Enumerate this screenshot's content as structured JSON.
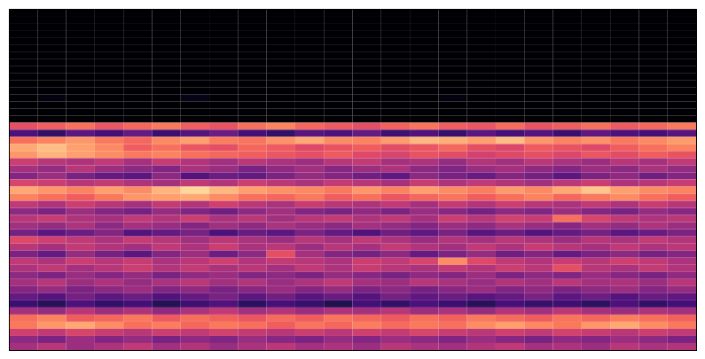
{
  "chart_data": {
    "type": "heatmap",
    "color": "magma",
    "xlim": [
      0,
      24
    ],
    "ylim": [
      0,
      48
    ],
    "zlim": [
      0,
      100
    ],
    "tick_labels": false,
    "cells": [
      [
        0,
        0,
        0,
        0,
        0,
        0,
        0,
        0,
        0,
        0,
        0,
        0,
        0,
        0,
        0,
        0,
        0,
        0,
        0,
        0,
        0,
        0,
        0,
        0
      ],
      [
        0,
        0,
        0,
        0,
        0,
        0,
        0,
        0,
        0,
        0,
        0,
        0,
        0,
        0,
        0,
        0,
        0,
        0,
        0,
        0,
        0,
        0,
        0,
        0
      ],
      [
        0,
        0,
        0,
        0,
        0,
        0,
        0,
        0,
        0,
        0,
        0,
        0,
        0,
        0,
        0,
        0,
        0,
        0,
        0,
        0,
        0,
        0,
        0,
        0
      ],
      [
        0,
        0,
        0,
        0,
        0,
        0,
        0,
        0,
        0,
        0,
        0,
        0,
        0,
        0,
        0,
        0,
        0,
        0,
        0,
        0,
        0,
        0,
        0,
        0
      ],
      [
        0,
        0,
        0,
        0,
        0,
        0,
        0,
        0,
        0,
        0,
        0,
        0,
        0,
        0,
        0,
        0,
        0,
        0,
        0,
        0,
        0,
        0,
        0,
        0
      ],
      [
        0,
        0,
        0,
        0,
        0,
        0,
        0,
        0,
        0,
        0,
        0,
        0,
        0,
        0,
        0,
        0,
        0,
        0,
        0,
        0,
        0,
        0,
        0,
        0
      ],
      [
        0,
        0,
        0,
        0,
        0,
        0,
        0,
        0,
        0,
        0,
        0,
        0,
        0,
        0,
        0,
        0,
        0,
        0,
        0,
        0,
        0,
        0,
        0,
        0
      ],
      [
        0,
        0,
        0,
        0,
        0,
        0,
        0,
        0,
        0,
        0,
        0,
        0,
        0,
        0,
        0,
        0,
        0,
        0,
        0,
        0,
        0,
        0,
        0,
        0
      ],
      [
        0,
        0,
        0,
        0,
        0,
        0,
        0,
        0,
        0,
        0,
        0,
        0,
        0,
        0,
        0,
        0,
        0,
        0,
        0,
        0,
        0,
        0,
        0,
        0
      ],
      [
        0,
        0,
        0,
        0,
        0,
        0,
        0,
        0,
        0,
        0,
        0,
        0,
        0,
        0,
        0,
        0,
        0,
        0,
        0,
        0,
        0,
        0,
        0,
        0
      ],
      [
        0,
        0,
        0,
        0,
        0,
        0,
        0,
        0,
        0,
        0,
        0,
        0,
        0,
        0,
        0,
        0,
        0,
        0,
        0,
        0,
        0,
        0,
        0,
        0
      ],
      [
        0,
        0,
        0,
        0,
        0,
        0,
        0,
        0,
        0,
        0,
        0,
        0,
        0,
        0,
        0,
        0,
        0,
        0,
        0,
        0,
        0,
        0,
        0,
        0
      ],
      [
        0,
        3,
        0,
        0,
        0,
        0,
        4,
        0,
        0,
        0,
        0,
        0,
        0,
        0,
        0,
        3,
        0,
        0,
        0,
        0,
        0,
        0,
        0,
        0
      ],
      [
        0,
        0,
        0,
        0,
        0,
        0,
        0,
        0,
        0,
        0,
        0,
        0,
        0,
        0,
        0,
        0,
        0,
        0,
        0,
        0,
        0,
        0,
        0,
        0
      ],
      [
        0,
        0,
        0,
        0,
        0,
        0,
        0,
        0,
        0,
        0,
        0,
        0,
        0,
        0,
        0,
        0,
        0,
        0,
        0,
        0,
        0,
        0,
        0,
        0
      ],
      [
        0,
        0,
        0,
        0,
        0,
        0,
        0,
        0,
        0,
        0,
        0,
        0,
        0,
        0,
        0,
        0,
        0,
        0,
        0,
        0,
        0,
        0,
        0,
        0
      ],
      [
        62,
        66,
        70,
        64,
        68,
        72,
        66,
        63,
        70,
        74,
        68,
        65,
        62,
        67,
        71,
        66,
        64,
        69,
        63,
        66,
        70,
        65,
        68,
        72
      ],
      [
        24,
        18,
        28,
        22,
        30,
        20,
        26,
        32,
        22,
        18,
        27,
        24,
        30,
        21,
        25,
        19,
        28,
        23,
        26,
        20,
        29,
        24,
        22,
        27
      ],
      [
        70,
        74,
        78,
        72,
        68,
        75,
        80,
        73,
        71,
        77,
        82,
        76,
        74,
        79,
        85,
        83,
        80,
        86,
        78,
        74,
        77,
        72,
        75,
        79
      ],
      [
        82,
        86,
        80,
        75,
        66,
        70,
        64,
        62,
        68,
        65,
        60,
        63,
        66,
        61,
        64,
        68,
        62,
        59,
        65,
        63,
        60,
        66,
        70,
        74
      ],
      [
        78,
        84,
        80,
        76,
        72,
        74,
        70,
        68,
        66,
        64,
        62,
        65,
        60,
        58,
        63,
        61,
        57,
        60,
        62,
        59,
        64,
        61,
        66,
        63
      ],
      [
        55,
        50,
        48,
        52,
        46,
        54,
        49,
        45,
        51,
        47,
        44,
        50,
        53,
        46,
        48,
        42,
        49,
        45,
        51,
        47,
        43,
        50,
        46,
        52
      ],
      [
        46,
        42,
        50,
        44,
        40,
        38,
        47,
        43,
        35,
        41,
        45,
        39,
        44,
        48,
        40,
        37,
        43,
        46,
        41,
        38,
        44,
        40,
        47,
        42
      ],
      [
        38,
        44,
        35,
        30,
        28,
        40,
        26,
        32,
        30,
        36,
        42,
        38,
        33,
        29,
        40,
        35,
        31,
        38,
        34,
        28,
        36,
        41,
        33,
        38
      ],
      [
        58,
        55,
        50,
        53,
        48,
        46,
        52,
        49,
        55,
        51,
        47,
        53,
        50,
        46,
        54,
        48,
        52,
        49,
        45,
        51,
        55,
        48,
        50,
        54
      ],
      [
        82,
        78,
        74,
        80,
        76,
        84,
        92,
        85,
        80,
        77,
        75,
        72,
        78,
        74,
        80,
        76,
        73,
        79,
        75,
        82,
        88,
        80,
        76,
        74
      ],
      [
        74,
        70,
        66,
        72,
        78,
        80,
        82,
        76,
        70,
        68,
        72,
        66,
        70,
        64,
        68,
        71,
        66,
        70,
        74,
        68,
        72,
        76,
        70,
        66
      ],
      [
        52,
        48,
        55,
        50,
        46,
        53,
        49,
        56,
        51,
        47,
        54,
        50,
        48,
        52,
        46,
        53,
        49,
        55,
        50,
        47,
        52,
        48,
        54,
        50
      ],
      [
        40,
        36,
        44,
        38,
        34,
        42,
        37,
        33,
        40,
        45,
        38,
        35,
        41,
        36,
        43,
        39,
        34,
        40,
        37,
        44,
        38,
        35,
        42,
        39
      ],
      [
        50,
        54,
        48,
        46,
        52,
        49,
        55,
        47,
        51,
        45,
        50,
        53,
        48,
        52,
        46,
        55,
        50,
        57,
        54,
        70,
        58,
        52,
        48,
        51
      ],
      [
        45,
        42,
        48,
        40,
        46,
        43,
        38,
        45,
        41,
        47,
        43,
        40,
        46,
        42,
        38,
        44,
        41,
        47,
        43,
        39,
        45,
        42,
        48,
        44
      ],
      [
        34,
        28,
        32,
        38,
        26,
        30,
        35,
        24,
        31,
        28,
        36,
        30,
        25,
        33,
        29,
        35,
        27,
        32,
        26,
        30,
        34,
        28,
        31,
        36
      ],
      [
        60,
        56,
        52,
        48,
        54,
        50,
        45,
        51,
        47,
        44,
        50,
        46,
        52,
        48,
        43,
        49,
        46,
        51,
        48,
        44,
        50,
        47,
        53,
        49
      ],
      [
        50,
        46,
        53,
        49,
        45,
        52,
        48,
        55,
        47,
        51,
        44,
        50,
        46,
        53,
        49,
        45,
        52,
        48,
        54,
        50,
        46,
        52,
        48,
        51
      ],
      [
        36,
        30,
        42,
        34,
        28,
        38,
        44,
        32,
        40,
        62,
        46,
        38,
        34,
        40,
        30,
        36,
        42,
        33,
        38,
        30,
        36,
        40,
        34,
        38
      ],
      [
        52,
        48,
        55,
        50,
        54,
        47,
        51,
        56,
        49,
        53,
        50,
        48,
        55,
        52,
        58,
        76,
        60,
        52,
        49,
        54,
        50,
        56,
        52,
        48
      ],
      [
        48,
        52,
        46,
        50,
        55,
        49,
        53,
        47,
        51,
        46,
        52,
        48,
        54,
        50,
        47,
        53,
        49,
        55,
        51,
        62,
        50,
        47,
        53,
        49
      ],
      [
        40,
        36,
        43,
        38,
        42,
        35,
        41,
        44,
        37,
        40,
        36,
        42,
        39,
        35,
        41,
        38,
        44,
        36,
        40,
        37,
        43,
        39,
        35,
        41
      ],
      [
        46,
        50,
        44,
        48,
        42,
        47,
        51,
        45,
        49,
        43,
        48,
        52,
        46,
        44,
        50,
        47,
        43,
        49,
        45,
        51,
        46,
        48,
        44,
        50
      ],
      [
        38,
        42,
        36,
        40,
        44,
        37,
        41,
        35,
        39,
        43,
        38,
        42,
        36,
        40,
        34,
        39,
        43,
        37,
        41,
        36,
        40,
        44,
        38,
        42
      ],
      [
        30,
        26,
        34,
        28,
        32,
        25,
        30,
        35,
        28,
        33,
        27,
        31,
        26,
        34,
        29,
        32,
        27,
        30,
        35,
        28,
        32,
        26,
        31,
        29
      ],
      [
        20,
        16,
        24,
        18,
        22,
        15,
        21,
        25,
        17,
        23,
        19,
        14,
        22,
        18,
        24,
        20,
        16,
        23,
        19,
        21,
        17,
        24,
        18,
        22
      ],
      [
        46,
        42,
        50,
        44,
        48,
        41,
        47,
        52,
        45,
        49,
        43,
        48,
        46,
        50,
        44,
        47,
        42,
        49,
        45,
        51,
        46,
        43,
        48,
        45
      ],
      [
        70,
        74,
        66,
        68,
        72,
        65,
        70,
        67,
        64,
        69,
        66,
        71,
        68,
        65,
        70,
        67,
        72,
        69,
        66,
        71,
        68,
        73,
        70,
        67
      ],
      [
        72,
        78,
        82,
        76,
        70,
        73,
        68,
        72,
        70,
        66,
        71,
        68,
        73,
        69,
        72,
        70,
        76,
        80,
        75,
        72,
        78,
        82,
        76,
        72
      ],
      [
        56,
        52,
        58,
        54,
        50,
        55,
        52,
        57,
        53,
        50,
        55,
        51,
        56,
        53,
        58,
        54,
        51,
        56,
        52,
        57,
        54,
        50,
        55,
        52
      ],
      [
        40,
        36,
        44,
        38,
        42,
        35,
        41,
        37,
        43,
        39,
        36,
        42,
        38,
        44,
        40,
        37,
        43,
        39,
        35,
        41,
        38,
        44,
        40,
        36
      ],
      [
        46,
        50,
        44,
        48,
        52,
        45,
        49,
        43,
        47,
        51,
        46,
        48,
        44,
        50,
        47,
        45,
        49,
        52,
        46,
        48,
        44,
        50,
        47,
        49
      ]
    ]
  }
}
